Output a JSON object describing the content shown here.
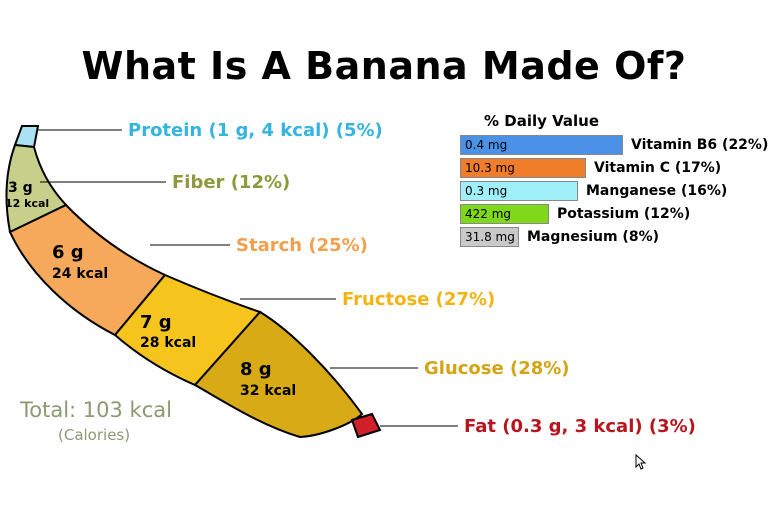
{
  "title": "What Is A Banana Made Of?",
  "segments": {
    "fiber": {
      "amount": "3 g",
      "kcal": "12 kcal",
      "color": "#c6d08a"
    },
    "starch": {
      "amount": "6 g",
      "kcal": "24 kcal",
      "color": "#f6a95a"
    },
    "fructose": {
      "amount": "7 g",
      "kcal": "28 kcal",
      "color": "#f6c51d"
    },
    "glucose": {
      "amount": "8 g",
      "kcal": "32 kcal",
      "color": "#d7aa16"
    },
    "protein": {
      "color": "#a9e2f4"
    },
    "fat": {
      "color": "#d0202a"
    }
  },
  "callouts": {
    "protein": {
      "label": "Protein (1 g, 4 kcal) (5%)",
      "color": "#34b4de"
    },
    "fiber": {
      "label": "Fiber (12%)",
      "color": "#8c9a3c"
    },
    "starch": {
      "label": "Starch (25%)",
      "color": "#f2a04e"
    },
    "fructose": {
      "label": "Fructose (27%)",
      "color": "#f2b313"
    },
    "glucose": {
      "label": "Glucose (28%)",
      "color": "#d4a414"
    },
    "fat": {
      "label": "Fat (0.3 g, 3 kcal) (3%)",
      "color": "#b8161e"
    }
  },
  "total": {
    "label": "Total: 103 kcal",
    "sub": "(Calories)",
    "color": "#8c9a72"
  },
  "daily_value": {
    "title": "% Daily Value",
    "rows": [
      {
        "amount": "0.4 mg",
        "label": "Vitamin B6 (22%)",
        "percent": 22,
        "color": "#4b91e8"
      },
      {
        "amount": "10.3 mg",
        "label": "Vitamin C (17%)",
        "percent": 17,
        "color": "#f07d2a"
      },
      {
        "amount": "0.3 mg",
        "label": "Manganese (16%)",
        "percent": 16,
        "color": "#9ff0f8"
      },
      {
        "amount": "422 mg",
        "label": "Potassium (12%)",
        "percent": 12,
        "color": "#7fd81a"
      },
      {
        "amount": "31.8 mg",
        "label": "Magnesium (8%)",
        "percent": 8,
        "color": "#c9c9c9"
      }
    ]
  }
}
